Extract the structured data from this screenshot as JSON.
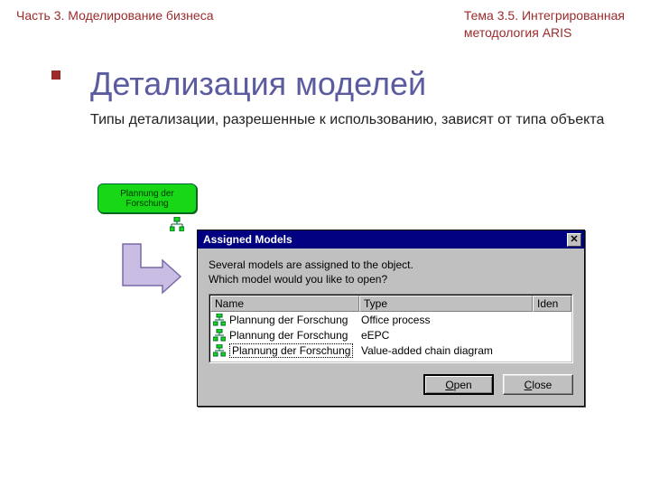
{
  "header": {
    "left": "Часть 3. Моделирование бизнеса",
    "right_line1": "Тема 3.5. Интегрированная",
    "right_line2": "методология ARIS"
  },
  "title": "Детализация моделей",
  "subtitle": "Типы детализации, разрешенные к использованию, зависят от типа объекта",
  "aris_object": {
    "label": "Plannung der Forschung",
    "fill": "#17d717",
    "border": "#006633"
  },
  "arrow_color": "#b9a9d9",
  "arrow_border": "#5b5b9f",
  "dialog": {
    "title": "Assigned Models",
    "titlebar_bg": "#000080",
    "bg": "#c0c0c0",
    "message_line1": "Several models are assigned to the object.",
    "message_line2": "Which model would you like to open?",
    "columns": [
      "Name",
      "Type",
      "Iden"
    ],
    "rows": [
      {
        "name": "Plannung der Forschung",
        "type": "Office process",
        "selected": false
      },
      {
        "name": "Plannung der Forschung",
        "type": "eEPC",
        "selected": false
      },
      {
        "name": "Plannung der Forschung",
        "type": "Value-added chain diagram",
        "selected": true
      }
    ],
    "buttons": {
      "open": "Open",
      "open_underline_first": "O",
      "close": "Close",
      "close_underline_first": "C"
    }
  }
}
